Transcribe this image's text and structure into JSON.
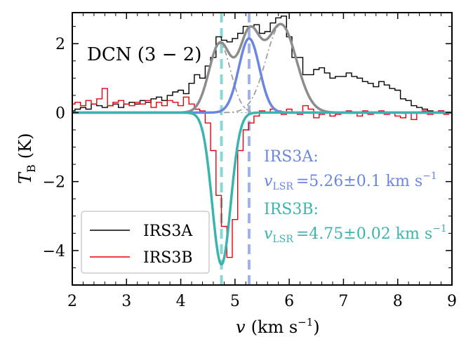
{
  "chart_data": {
    "type": "line",
    "title": "DCN (3 − 2)",
    "xlabel": {
      "symbol": "v",
      "unit": "(km s",
      "exp": "−1",
      "close": ")"
    },
    "ylabel": {
      "symbol": "T",
      "sub": "B",
      "unit": "(K)"
    },
    "xlim": [
      2,
      9
    ],
    "ylim": [
      -5,
      2.9
    ],
    "xticks": [
      2,
      3,
      4,
      5,
      6,
      7,
      8,
      9
    ],
    "xtick_labels": [
      "2",
      "3",
      "4",
      "5",
      "6",
      "7",
      "8",
      "9"
    ],
    "yticks": [
      -4,
      -2,
      0,
      2
    ],
    "ytick_labels": [
      "−4",
      "−2",
      "0",
      "2"
    ],
    "colors": {
      "irs3a": "#000000",
      "irs3b": "#e8000b",
      "fit_total": "#8c8c8c",
      "fit_comp": "#a0a0a0",
      "fit_irs3a": "#6a86e0",
      "fit_irs3b": "#3cb4ae",
      "vline_a": "#a0b2ee",
      "vline_b": "#8ad8d2"
    },
    "legend": {
      "position": "lower-left",
      "entries": [
        "IRS3A",
        "IRS3B"
      ]
    },
    "annotations": {
      "irs3a_label": "IRS3A:",
      "irs3a_vlsr": "=5.26±0.1 km s",
      "irs3b_label": "IRS3B:",
      "irs3b_vlsr": "=4.75±0.02 km s",
      "vlsr_symbol": "v",
      "vlsr_sub": "LSR",
      "unit_exp": "−1"
    },
    "vlines": [
      4.75,
      5.26
    ],
    "series": [
      {
        "name": "IRS3A",
        "style": "step",
        "x": [
          2.0,
          2.1,
          2.2,
          2.3,
          2.4,
          2.5,
          2.6,
          2.7,
          2.8,
          2.9,
          3.0,
          3.1,
          3.2,
          3.3,
          3.4,
          3.5,
          3.6,
          3.7,
          3.8,
          3.9,
          4.0,
          4.1,
          4.2,
          4.3,
          4.4,
          4.5,
          4.6,
          4.7,
          4.8,
          4.9,
          5.0,
          5.1,
          5.2,
          5.3,
          5.4,
          5.5,
          5.6,
          5.7,
          5.8,
          5.9,
          6.0,
          6.1,
          6.2,
          6.3,
          6.4,
          6.5,
          6.6,
          6.7,
          6.8,
          6.9,
          7.0,
          7.1,
          7.2,
          7.3,
          7.4,
          7.5,
          7.6,
          7.7,
          7.8,
          7.9,
          8.0,
          8.1,
          8.2,
          8.3,
          8.4,
          8.5,
          8.6,
          8.7,
          8.8,
          8.9
        ],
        "y": [
          0.05,
          0.1,
          0.15,
          0.1,
          0.25,
          0.2,
          0.15,
          0.2,
          0.25,
          0.15,
          0.25,
          0.3,
          0.25,
          0.35,
          0.3,
          0.4,
          0.45,
          0.35,
          0.5,
          0.6,
          0.65,
          0.55,
          0.85,
          1.1,
          1.0,
          1.35,
          1.6,
          2.2,
          2.1,
          2.05,
          2.15,
          2.3,
          2.5,
          2.5,
          2.55,
          2.3,
          2.35,
          2.6,
          2.75,
          2.8,
          2.2,
          1.6,
          1.6,
          1.1,
          1.1,
          1.25,
          1.3,
          1.15,
          1.0,
          1.05,
          1.05,
          1.15,
          1.05,
          1.0,
          0.9,
          0.85,
          0.75,
          0.9,
          0.8,
          0.7,
          0.65,
          0.4,
          0.35,
          0.2,
          0.15,
          0.1,
          0.05,
          0.0,
          0.05,
          0.0
        ]
      },
      {
        "name": "IRS3B",
        "style": "step",
        "x": [
          2.0,
          2.1,
          2.2,
          2.3,
          2.4,
          2.5,
          2.6,
          2.7,
          2.8,
          2.9,
          3.0,
          3.1,
          3.2,
          3.3,
          3.4,
          3.5,
          3.6,
          3.7,
          3.8,
          3.9,
          4.0,
          4.1,
          4.2,
          4.3,
          4.4,
          4.5,
          4.6,
          4.7,
          4.8,
          4.9,
          5.0,
          5.1,
          5.2,
          5.3,
          5.4,
          5.5,
          5.6,
          5.7,
          5.8,
          5.9,
          6.0,
          6.1,
          6.2,
          6.3,
          6.4,
          6.5,
          6.6,
          6.7,
          6.8,
          6.9,
          7.0,
          7.1,
          7.2,
          7.3,
          7.4,
          7.5,
          7.6,
          7.7,
          7.8,
          7.9,
          8.0,
          8.1,
          8.2,
          8.3,
          8.4,
          8.5,
          8.6,
          8.7,
          8.8,
          8.9
        ],
        "y": [
          0.25,
          0.3,
          0.2,
          0.35,
          0.25,
          0.4,
          0.7,
          0.2,
          0.3,
          0.35,
          0.25,
          0.2,
          0.3,
          0.25,
          0.35,
          0.15,
          0.3,
          0.2,
          0.35,
          0.3,
          0.2,
          0.45,
          0.25,
          0.1,
          0.05,
          -0.3,
          -1.1,
          -2.4,
          -3.3,
          -4.2,
          -3.1,
          -1.1,
          -0.5,
          -0.3,
          -0.1,
          0.05,
          0.0,
          0.1,
          0.05,
          -0.05,
          0.1,
          0.0,
          -0.05,
          0.2,
          0.1,
          -0.15,
          -0.05,
          0.0,
          -0.1,
          -0.05,
          0.0,
          0.05,
          0.0,
          -0.1,
          0.05,
          -0.05,
          0.0,
          0.05,
          -0.05,
          0.0,
          -0.1,
          -0.15,
          0.0,
          -0.2,
          0.0,
          0.05,
          -0.05,
          0.0,
          0.05,
          -0.05
        ]
      }
    ],
    "fits": [
      {
        "name": "fit_irs3a",
        "type": "gaussian",
        "amp": 2.15,
        "center": 5.26,
        "sigma": 0.19
      },
      {
        "name": "fit_irs3b",
        "type": "gaussian",
        "amp": -4.4,
        "center": 4.75,
        "sigma": 0.17
      },
      {
        "name": "fit_comp_left",
        "type": "gaussian",
        "amp": 2.0,
        "center": 4.72,
        "sigma": 0.2
      },
      {
        "name": "fit_comp_right",
        "type": "gaussian",
        "amp": 2.55,
        "center": 5.85,
        "sigma": 0.28
      }
    ]
  }
}
